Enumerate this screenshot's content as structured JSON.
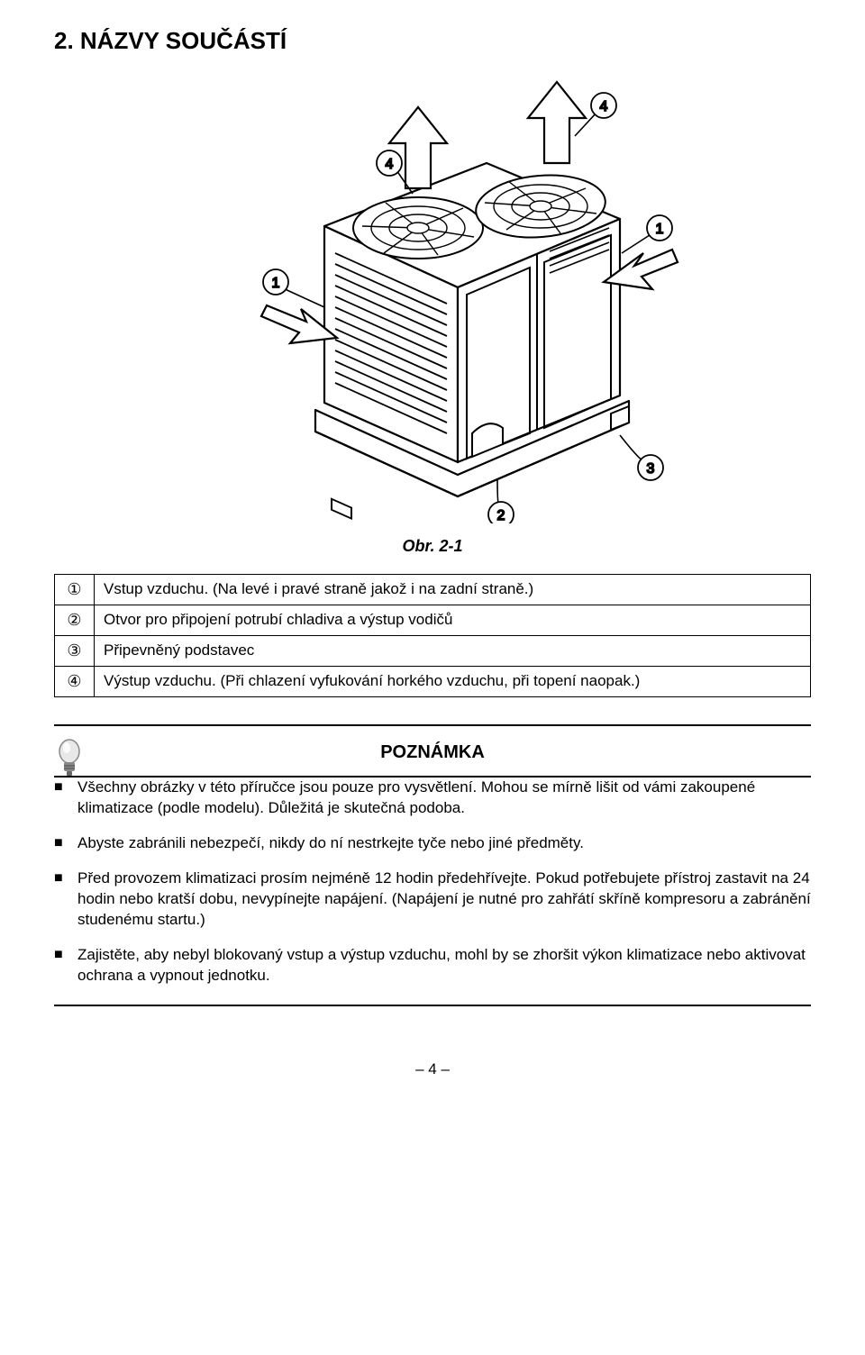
{
  "section_title": "2. NÁZVY SOUČÁSTÍ",
  "figure_caption": "Obr. 2-1",
  "parts_table": {
    "rows": [
      {
        "num": "①",
        "desc": "Vstup vzduchu. (Na levé i pravé straně jakož i na zadní straně.)"
      },
      {
        "num": "②",
        "desc": "Otvor pro připojení potrubí chladiva a výstup vodičů"
      },
      {
        "num": "③",
        "desc": "Připevněný podstavec"
      },
      {
        "num": "④",
        "desc": "Výstup vzduchu. (Při chlazení vyfukování horkého vzduchu, při topení naopak.)"
      }
    ]
  },
  "note_title": "POZNÁMKA",
  "notes": [
    "Všechny obrázky v této příručce jsou pouze pro vysvětlení. Mohou se mírně lišit od vámi zakoupené klimatizace (podle modelu). Důležitá je skutečná podoba.",
    "Abyste zabránili nebezpečí, nikdy do ní nestrkejte tyče nebo jiné předměty.",
    "Před provozem klimatizaci prosím nejméně 12 hodin předehřívejte. Pokud potřebujete přístroj zastavit na 24 hodin nebo kratší dobu, nevypínejte napájení. (Napájení je nutné pro zahřátí skříně kompresoru a zabránění studenému startu.)",
    "Zajistěte, aby nebyl blokovaný vstup a výstup vzduchu, mohl by se zhoršit výkon klimatizace nebo aktivovat ochrana a vypnout jednotku."
  ],
  "callouts": {
    "c1": "1",
    "c2": "2",
    "c3": "3",
    "c4a": "4",
    "c4b": "4"
  },
  "page_number": "– 4 –",
  "colors": {
    "stroke": "#000000",
    "callout_fill": "#ffffff",
    "bulb_base": "#888888",
    "bulb_glass": "#e8e8e8"
  }
}
